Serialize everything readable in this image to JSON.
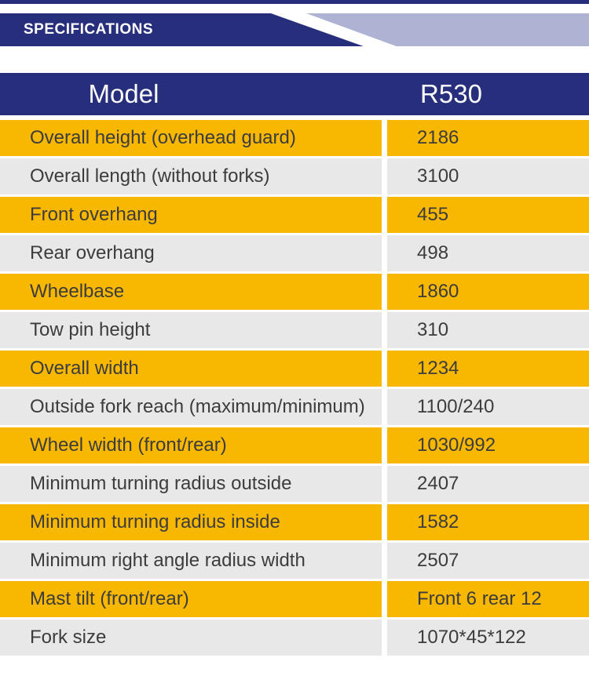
{
  "banner": {
    "title": "SPECIFICATIONS"
  },
  "table": {
    "header": {
      "model_label": "Model",
      "model_value": "R530"
    },
    "rows": [
      {
        "label": "Overall height (overhead guard)",
        "value": "2186"
      },
      {
        "label": "Overall length (without forks)",
        "value": "3100"
      },
      {
        "label": "Front overhang",
        "value": "455"
      },
      {
        "label": "Rear overhang",
        "value": "498"
      },
      {
        "label": "Wheelbase",
        "value": "1860"
      },
      {
        "label": "Tow pin height",
        "value": "310"
      },
      {
        "label": "Overall width",
        "value": "1234"
      },
      {
        "label": "Outside fork reach (maximum/minimum)",
        "value": "1100/240"
      },
      {
        "label": "Wheel width (front/rear)",
        "value": "1030/992"
      },
      {
        "label": "Minimum turning radius outside",
        "value": "2407"
      },
      {
        "label": "Minimum turning radius inside",
        "value": "1582"
      },
      {
        "label": "Minimum right angle radius width",
        "value": "2507"
      },
      {
        "label": "Mast tilt (front/rear)",
        "value": "Front 6 rear 12"
      },
      {
        "label": "Fork size",
        "value": "1070*45*122"
      }
    ]
  },
  "colors": {
    "navy": "#272F7D",
    "lavender": "#AEB3D4",
    "yellow": "#F8B700",
    "gray_row": "#E8E8E8",
    "text_dark": "#3C3C3C"
  }
}
